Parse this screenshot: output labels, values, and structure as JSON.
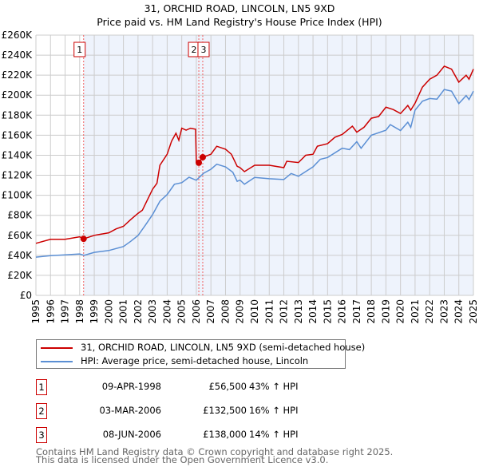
{
  "chart_data": {
    "type": "line",
    "title": "31, ORCHID ROAD, LINCOLN, LN5 9XD",
    "subtitle": "Price paid vs. HM Land Registry's House Price Index (HPI)",
    "xlim": [
      1995,
      2025
    ],
    "ylim": [
      0,
      260000
    ],
    "y_ticks": [
      "£0",
      "£20K",
      "£40K",
      "£60K",
      "£80K",
      "£100K",
      "£120K",
      "£140K",
      "£160K",
      "£180K",
      "£200K",
      "£220K",
      "£240K",
      "£260K"
    ],
    "x_ticks": [
      "1995",
      "1996",
      "1997",
      "1998",
      "1999",
      "2000",
      "2001",
      "2002",
      "2003",
      "2004",
      "2005",
      "2006",
      "2007",
      "2008",
      "2009",
      "2010",
      "2011",
      "2012",
      "2013",
      "2014",
      "2015",
      "2016",
      "2017",
      "2018",
      "2019",
      "2020",
      "2021",
      "2022",
      "2023",
      "2024",
      "2025"
    ],
    "grid": true,
    "series": [
      {
        "name": "31, ORCHID ROAD, LINCOLN, LN5 9XD (semi-detached house)",
        "color": "#cc0000",
        "x": [
          1995,
          1996,
          1997,
          1998,
          1998.27,
          1999,
          2000,
          2000.5,
          2001,
          2001.5,
          2002,
          2002.3,
          2003,
          2003.3,
          2003.5,
          2004,
          2004.3,
          2004.6,
          2004.8,
          2005,
          2005.3,
          2005.6,
          2005.95,
          2006.0,
          2006.17,
          2006.44,
          2007,
          2007.4,
          2008,
          2008.4,
          2008.8,
          2009,
          2009.3,
          2010,
          2011,
          2012,
          2012.2,
          2013,
          2013.5,
          2014,
          2014.3,
          2015,
          2015.5,
          2016,
          2016.7,
          2017,
          2017.5,
          2018,
          2018.5,
          2019,
          2019.5,
          2020,
          2020.5,
          2020.7,
          2021,
          2021.5,
          2022,
          2022.5,
          2023,
          2023.5,
          2024,
          2024.5,
          2024.7,
          2025
        ],
        "y": [
          52000,
          56000,
          56000,
          58500,
          56500,
          60000,
          62500,
          66400,
          69000,
          75700,
          82000,
          85000,
          106000,
          112000,
          130000,
          141000,
          154000,
          162000,
          155000,
          167000,
          165000,
          167000,
          166000,
          133000,
          132500,
          138000,
          141000,
          149000,
          146000,
          141000,
          129000,
          127600,
          123600,
          130000,
          130000,
          127600,
          134000,
          132700,
          140000,
          141000,
          149000,
          151500,
          158000,
          160700,
          169000,
          163000,
          168000,
          177000,
          178700,
          188000,
          185700,
          181700,
          189700,
          185000,
          192000,
          208000,
          216000,
          220000,
          229000,
          226000,
          213000,
          220000,
          216000,
          226000
        ]
      },
      {
        "name": "HPI: Average price, semi-detached house, Lincoln",
        "color": "#5b8fd4",
        "x": [
          1995,
          1996,
          1997,
          1998,
          1998.3,
          1999,
          2000,
          2001,
          2001.5,
          2002,
          2002.5,
          2003,
          2003.5,
          2004,
          2004.5,
          2005,
          2005.5,
          2006,
          2006.5,
          2007,
          2007.4,
          2008,
          2008.5,
          2008.8,
          2009,
          2009.3,
          2010,
          2011,
          2012,
          2012.5,
          2013,
          2014,
          2014.5,
          2015,
          2016,
          2016.5,
          2017,
          2017.3,
          2018,
          2019,
          2019.3,
          2020,
          2020.5,
          2020.7,
          2021,
          2021.5,
          2022,
          2022.5,
          2023,
          2023.5,
          2024,
          2024.5,
          2024.7,
          2025
        ],
        "y": [
          38200,
          39600,
          40400,
          41400,
          40000,
          43000,
          44800,
          48800,
          54000,
          59800,
          70000,
          80700,
          94000,
          100700,
          111000,
          112600,
          118000,
          115000,
          122000,
          126000,
          131000,
          128400,
          123000,
          114000,
          115200,
          111000,
          117800,
          116500,
          115700,
          121800,
          119000,
          128400,
          136000,
          137700,
          147000,
          145600,
          153500,
          147000,
          160000,
          165000,
          170600,
          164700,
          173000,
          167900,
          185000,
          194000,
          196700,
          196000,
          205700,
          204000,
          191600,
          199600,
          195600,
          204000
        ]
      }
    ],
    "sales": [
      {
        "label": "1",
        "x": 1998.27,
        "y": 56500
      },
      {
        "label": "2",
        "x": 2006.17,
        "y": 132500
      },
      {
        "label": "3",
        "x": 2006.44,
        "y": 138000
      }
    ]
  },
  "legend": {
    "property": "31, ORCHID ROAD, LINCOLN, LN5 9XD (semi-detached house)",
    "hpi": "HPI: Average price, semi-detached house, Lincoln"
  },
  "table": [
    {
      "num": "1",
      "date": "09-APR-1998",
      "price": "£56,500",
      "hpi": "43% ↑ HPI"
    },
    {
      "num": "2",
      "date": "03-MAR-2006",
      "price": "£132,500",
      "hpi": "16% ↑ HPI"
    },
    {
      "num": "3",
      "date": "08-JUN-2006",
      "price": "£138,000",
      "hpi": "14% ↑ HPI"
    }
  ],
  "footer": [
    "Contains HM Land Registry data © Crown copyright and database right 2025.",
    "This data is licensed under the Open Government Licence v3.0."
  ]
}
